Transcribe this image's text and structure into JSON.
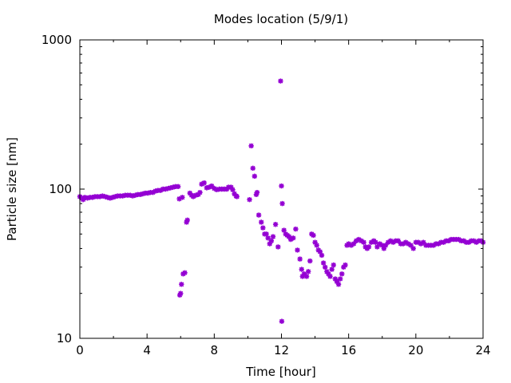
{
  "chart_data": {
    "type": "scatter",
    "title": "Modes location (5/9/1)",
    "xlabel": "Time [hour]",
    "ylabel": "Particle size [nm]",
    "xlim": [
      0,
      24
    ],
    "ylim": [
      10,
      1000
    ],
    "yscale": "log",
    "x_ticks": [
      0,
      4,
      8,
      12,
      16,
      20,
      24
    ],
    "x_tick_labels": [
      "0",
      "4",
      "8",
      "12",
      "16",
      "20",
      "24"
    ],
    "y_ticks": [
      10,
      100,
      1000
    ],
    "y_tick_labels": [
      "10",
      "100",
      "1000"
    ],
    "grid": false,
    "marker": "asterisk",
    "color": "#9400d3",
    "series": [
      {
        "points": [
          [
            0.0,
            89
          ],
          [
            0.1,
            87
          ],
          [
            0.2,
            85
          ],
          [
            0.3,
            88
          ],
          [
            0.45,
            87
          ],
          [
            0.6,
            88
          ],
          [
            0.75,
            88
          ],
          [
            0.9,
            89
          ],
          [
            1.05,
            89
          ],
          [
            1.2,
            89
          ],
          [
            1.35,
            90
          ],
          [
            1.5,
            89
          ],
          [
            1.65,
            88
          ],
          [
            1.8,
            87
          ],
          [
            1.95,
            88
          ],
          [
            2.1,
            89
          ],
          [
            2.25,
            90
          ],
          [
            2.4,
            90
          ],
          [
            2.55,
            90
          ],
          [
            2.7,
            91
          ],
          [
            2.85,
            91
          ],
          [
            3.0,
            91
          ],
          [
            3.15,
            90
          ],
          [
            3.3,
            91
          ],
          [
            3.45,
            92
          ],
          [
            3.6,
            92
          ],
          [
            3.75,
            93
          ],
          [
            3.9,
            94
          ],
          [
            4.05,
            94
          ],
          [
            4.2,
            95
          ],
          [
            4.35,
            95
          ],
          [
            4.5,
            97
          ],
          [
            4.65,
            98
          ],
          [
            4.8,
            98
          ],
          [
            4.95,
            100
          ],
          [
            5.1,
            100
          ],
          [
            5.25,
            101
          ],
          [
            5.4,
            102
          ],
          [
            5.55,
            103
          ],
          [
            5.7,
            104
          ],
          [
            5.85,
            104
          ],
          [
            5.92,
            86
          ],
          [
            5.95,
            19.5
          ],
          [
            6.0,
            20
          ],
          [
            6.05,
            23
          ],
          [
            6.1,
            88
          ],
          [
            6.15,
            27
          ],
          [
            6.25,
            27.5
          ],
          [
            6.35,
            60
          ],
          [
            6.4,
            62
          ],
          [
            6.55,
            94
          ],
          [
            6.65,
            91
          ],
          [
            6.75,
            89
          ],
          [
            6.9,
            91
          ],
          [
            7.05,
            92
          ],
          [
            7.15,
            95
          ],
          [
            7.25,
            108
          ],
          [
            7.4,
            110
          ],
          [
            7.55,
            102
          ],
          [
            7.7,
            103
          ],
          [
            7.85,
            105
          ],
          [
            8.0,
            101
          ],
          [
            8.15,
            99
          ],
          [
            8.3,
            100
          ],
          [
            8.45,
            100
          ],
          [
            8.6,
            100
          ],
          [
            8.75,
            100
          ],
          [
            8.85,
            103
          ],
          [
            9.0,
            103
          ],
          [
            9.1,
            99
          ],
          [
            9.2,
            93
          ],
          [
            9.3,
            90
          ],
          [
            9.35,
            89
          ],
          [
            10.1,
            85
          ],
          [
            10.2,
            195
          ],
          [
            10.3,
            138
          ],
          [
            10.4,
            122
          ],
          [
            10.5,
            92
          ],
          [
            10.55,
            95
          ],
          [
            10.65,
            67
          ],
          [
            10.8,
            60
          ],
          [
            10.9,
            55
          ],
          [
            11.0,
            50
          ],
          [
            11.1,
            50
          ],
          [
            11.2,
            47
          ],
          [
            11.3,
            43
          ],
          [
            11.4,
            45
          ],
          [
            11.5,
            48
          ],
          [
            11.65,
            58
          ],
          [
            11.8,
            41
          ],
          [
            11.95,
            530
          ],
          [
            12.0,
            105
          ],
          [
            12.02,
            13
          ],
          [
            12.05,
            80
          ],
          [
            12.15,
            53
          ],
          [
            12.25,
            50
          ],
          [
            12.35,
            49
          ],
          [
            12.45,
            48
          ],
          [
            12.55,
            46
          ],
          [
            12.7,
            47
          ],
          [
            12.85,
            54
          ],
          [
            12.95,
            39
          ],
          [
            13.1,
            34
          ],
          [
            13.2,
            29
          ],
          [
            13.25,
            26
          ],
          [
            13.35,
            27
          ],
          [
            13.5,
            26
          ],
          [
            13.6,
            28
          ],
          [
            13.7,
            33
          ],
          [
            13.8,
            50
          ],
          [
            13.9,
            49
          ],
          [
            14.0,
            44
          ],
          [
            14.1,
            42
          ],
          [
            14.2,
            39
          ],
          [
            14.3,
            38
          ],
          [
            14.4,
            36
          ],
          [
            14.5,
            32
          ],
          [
            14.6,
            30
          ],
          [
            14.7,
            28
          ],
          [
            14.8,
            27
          ],
          [
            14.9,
            26
          ],
          [
            15.0,
            29
          ],
          [
            15.1,
            31
          ],
          [
            15.2,
            25
          ],
          [
            15.3,
            24
          ],
          [
            15.4,
            23
          ],
          [
            15.5,
            25
          ],
          [
            15.6,
            27
          ],
          [
            15.7,
            30
          ],
          [
            15.8,
            31
          ],
          [
            15.9,
            42
          ],
          [
            16.0,
            43
          ],
          [
            16.15,
            42
          ],
          [
            16.3,
            43
          ],
          [
            16.45,
            45
          ],
          [
            16.6,
            46
          ],
          [
            16.75,
            45
          ],
          [
            16.9,
            44
          ],
          [
            17.0,
            41
          ],
          [
            17.1,
            40
          ],
          [
            17.2,
            41
          ],
          [
            17.35,
            44
          ],
          [
            17.5,
            45
          ],
          [
            17.6,
            44
          ],
          [
            17.7,
            41
          ],
          [
            17.85,
            43
          ],
          [
            18.0,
            42
          ],
          [
            18.1,
            40
          ],
          [
            18.2,
            42
          ],
          [
            18.35,
            44
          ],
          [
            18.5,
            45
          ],
          [
            18.65,
            44
          ],
          [
            18.8,
            45
          ],
          [
            18.95,
            45
          ],
          [
            19.1,
            43
          ],
          [
            19.25,
            43
          ],
          [
            19.4,
            44
          ],
          [
            19.55,
            43
          ],
          [
            19.7,
            42
          ],
          [
            19.85,
            40
          ],
          [
            20.0,
            44
          ],
          [
            20.15,
            44
          ],
          [
            20.3,
            43
          ],
          [
            20.45,
            44
          ],
          [
            20.6,
            42
          ],
          [
            20.75,
            42
          ],
          [
            20.9,
            42
          ],
          [
            21.05,
            42
          ],
          [
            21.2,
            43
          ],
          [
            21.35,
            43
          ],
          [
            21.5,
            44
          ],
          [
            21.65,
            44
          ],
          [
            21.8,
            45
          ],
          [
            21.95,
            45
          ],
          [
            22.1,
            46
          ],
          [
            22.25,
            46
          ],
          [
            22.4,
            46
          ],
          [
            22.55,
            46
          ],
          [
            22.7,
            45
          ],
          [
            22.85,
            45
          ],
          [
            23.0,
            44
          ],
          [
            23.15,
            44
          ],
          [
            23.3,
            45
          ],
          [
            23.45,
            45
          ],
          [
            23.6,
            44
          ],
          [
            23.75,
            45
          ],
          [
            23.9,
            45
          ],
          [
            24.0,
            44
          ]
        ]
      }
    ]
  }
}
